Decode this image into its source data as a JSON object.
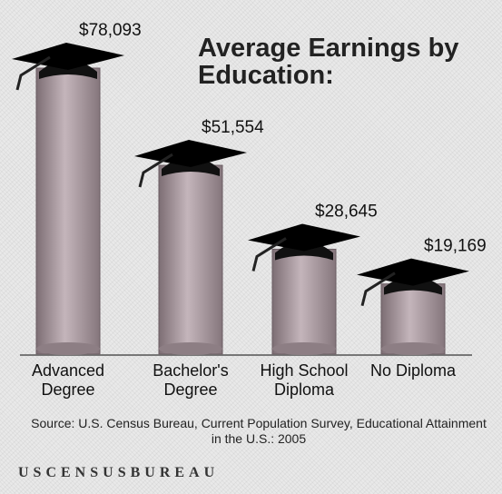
{
  "chart_data": {
    "type": "bar",
    "title": "Average Earnings by Education:",
    "categories": [
      "Advanced Degree",
      "Bachelor's Degree",
      "High School Diploma",
      "No Diploma"
    ],
    "values": [
      78093,
      51554,
      28645,
      19169
    ],
    "value_labels": [
      "$78,093",
      "$51,554",
      "$28,645",
      "$19,169"
    ],
    "color": "#a8989e",
    "source": "Source: U.S. Census Bureau, Current Population Survey, Educational Attainment in the U.S.: 2005",
    "footer": "USCENSUSBUREAU"
  }
}
